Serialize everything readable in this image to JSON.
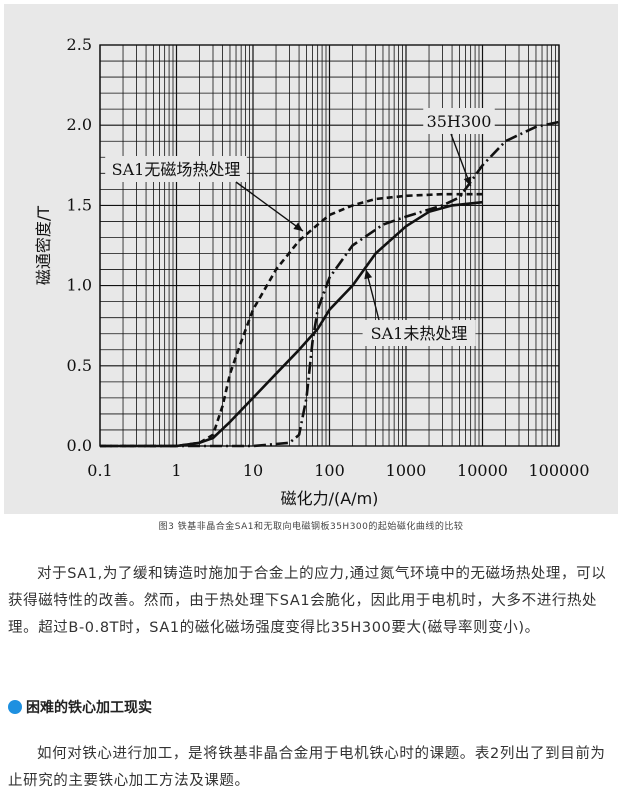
{
  "chart_data": {
    "type": "line",
    "xscale": "log",
    "xlim": [
      0.1,
      100000
    ],
    "ylim": [
      0.0,
      2.5
    ],
    "xlabel": "磁化力/(A/m)",
    "ylabel": "磁通密度/T",
    "x_ticks": [
      "0.1",
      "1",
      "10",
      "100",
      "1000",
      "10000",
      "100000"
    ],
    "y_ticks": [
      "0.0",
      "0.5",
      "1.0",
      "1.5",
      "2.0",
      "2.5"
    ],
    "grid": true,
    "series": [
      {
        "name": "SA1无磁场热处理",
        "style": "dashed",
        "points": [
          [
            0.1,
            0.0
          ],
          [
            1,
            0.0
          ],
          [
            2,
            0.02
          ],
          [
            3,
            0.07
          ],
          [
            4,
            0.25
          ],
          [
            5,
            0.45
          ],
          [
            7,
            0.65
          ],
          [
            10,
            0.85
          ],
          [
            20,
            1.1
          ],
          [
            40,
            1.28
          ],
          [
            70,
            1.38
          ],
          [
            100,
            1.44
          ],
          [
            200,
            1.5
          ],
          [
            400,
            1.54
          ],
          [
            1000,
            1.56
          ],
          [
            3000,
            1.57
          ],
          [
            10000,
            1.57
          ]
        ]
      },
      {
        "name": "SA1未热处理",
        "style": "solid",
        "points": [
          [
            0.1,
            0.0
          ],
          [
            1,
            0.0
          ],
          [
            2,
            0.02
          ],
          [
            3,
            0.05
          ],
          [
            5,
            0.15
          ],
          [
            10,
            0.3
          ],
          [
            20,
            0.45
          ],
          [
            40,
            0.6
          ],
          [
            70,
            0.73
          ],
          [
            100,
            0.85
          ],
          [
            200,
            1.0
          ],
          [
            400,
            1.2
          ],
          [
            1000,
            1.37
          ],
          [
            2000,
            1.46
          ],
          [
            4000,
            1.5
          ],
          [
            10000,
            1.52
          ]
        ]
      },
      {
        "name": "35H300",
        "style": "dashdot",
        "points": [
          [
            0.1,
            0.0
          ],
          [
            10,
            0.0
          ],
          [
            30,
            0.02
          ],
          [
            40,
            0.07
          ],
          [
            50,
            0.3
          ],
          [
            60,
            0.65
          ],
          [
            70,
            0.85
          ],
          [
            100,
            1.05
          ],
          [
            200,
            1.25
          ],
          [
            500,
            1.38
          ],
          [
            1000,
            1.43
          ],
          [
            3000,
            1.5
          ],
          [
            5000,
            1.55
          ],
          [
            10000,
            1.75
          ],
          [
            20000,
            1.9
          ],
          [
            50000,
            1.99
          ],
          [
            100000,
            2.02
          ]
        ]
      }
    ],
    "annotations": [
      {
        "text": "SA1无磁场热处理",
        "arrow_to": [
          45,
          1.34
        ]
      },
      {
        "text": "35H300",
        "arrow_to": [
          7000,
          1.62
        ]
      },
      {
        "text": "SA1未热处理",
        "arrow_to": [
          300,
          1.1
        ]
      }
    ]
  },
  "caption": "图3 铁基非晶合金SA1和无取向电磁钢板35H300的起始磁化曲线的比较",
  "paragraph1": "对于SA1,为了缓和铸造时施加于合金上的应力,通过氮气环境中的无磁场热处理，可以获得磁特性的改善。然而，由于热处理下SA1会脆化，因此用于电机时，大多不进行热处理。超过B-0.8T时，SA1的磁化磁场强度变得比35H300要大(磁导率则变小)。",
  "heading": "困难的铁心加工现实",
  "paragraph2": "如何对铁心进行加工，是将铁基非晶合金用于电机铁心时的课题。表2列出了到目前为止研究的主要铁心加工方法及课题。",
  "colors": {
    "accent_dot": "#1e90e0",
    "plot_ink": "#111111",
    "photo_bg": "#e8e8e8"
  }
}
